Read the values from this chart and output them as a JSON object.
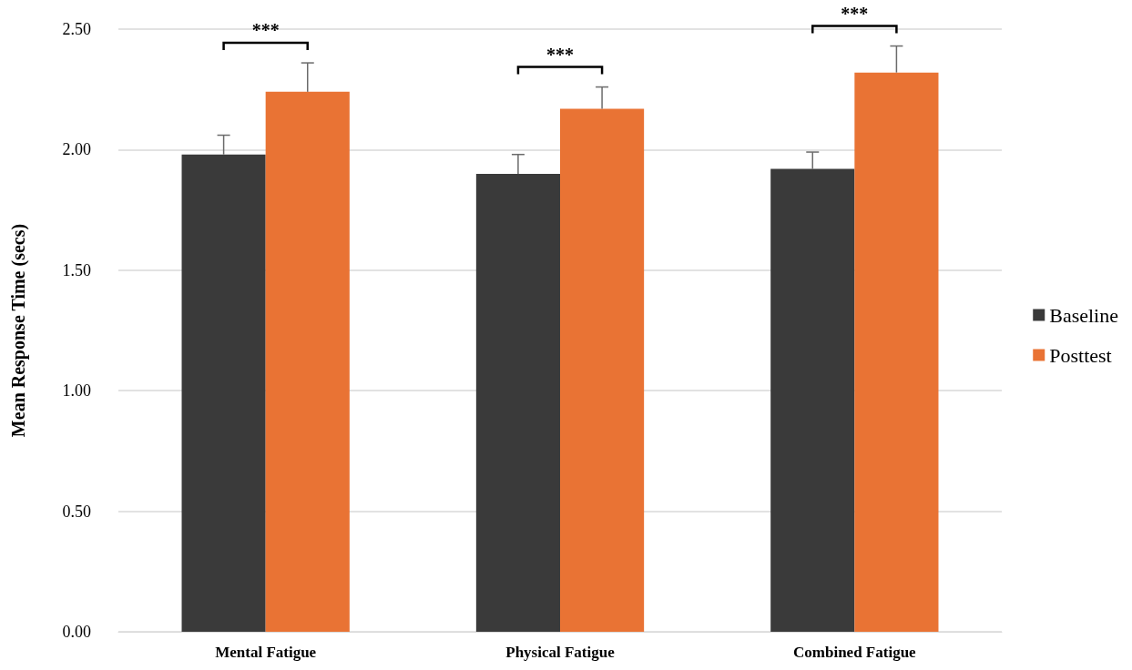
{
  "chart_data": {
    "type": "bar",
    "ylabel": "Mean Response Time (secs)",
    "categories": [
      "Mental Fatigue",
      "Physical Fatigue",
      "Combined Fatigue"
    ],
    "series": [
      {
        "name": "Baseline",
        "color": "#3a3a3a",
        "values": [
          1.98,
          1.9,
          1.92
        ],
        "errors": [
          [
            1.98,
            2.06
          ],
          [
            1.9,
            1.98
          ],
          [
            1.92,
            1.99
          ]
        ]
      },
      {
        "name": "Posttest",
        "color": "#e97334",
        "values": [
          2.24,
          2.17,
          2.32
        ],
        "errors": [
          [
            2.24,
            2.36
          ],
          [
            2.17,
            2.26
          ],
          [
            2.32,
            2.43
          ]
        ]
      }
    ],
    "ylim": [
      0,
      2.5
    ],
    "yticks": [
      {
        "value": 0,
        "label": "0.00"
      },
      {
        "value": 0.5,
        "label": "0.50"
      },
      {
        "value": 1,
        "label": "1.00"
      },
      {
        "value": 1.5,
        "label": "1.50"
      },
      {
        "value": 2,
        "label": "2.00"
      },
      {
        "value": 2.5,
        "label": "2.50"
      }
    ],
    "grid": "y",
    "legend": "right",
    "annotations": [
      "***",
      "***",
      "***"
    ]
  }
}
